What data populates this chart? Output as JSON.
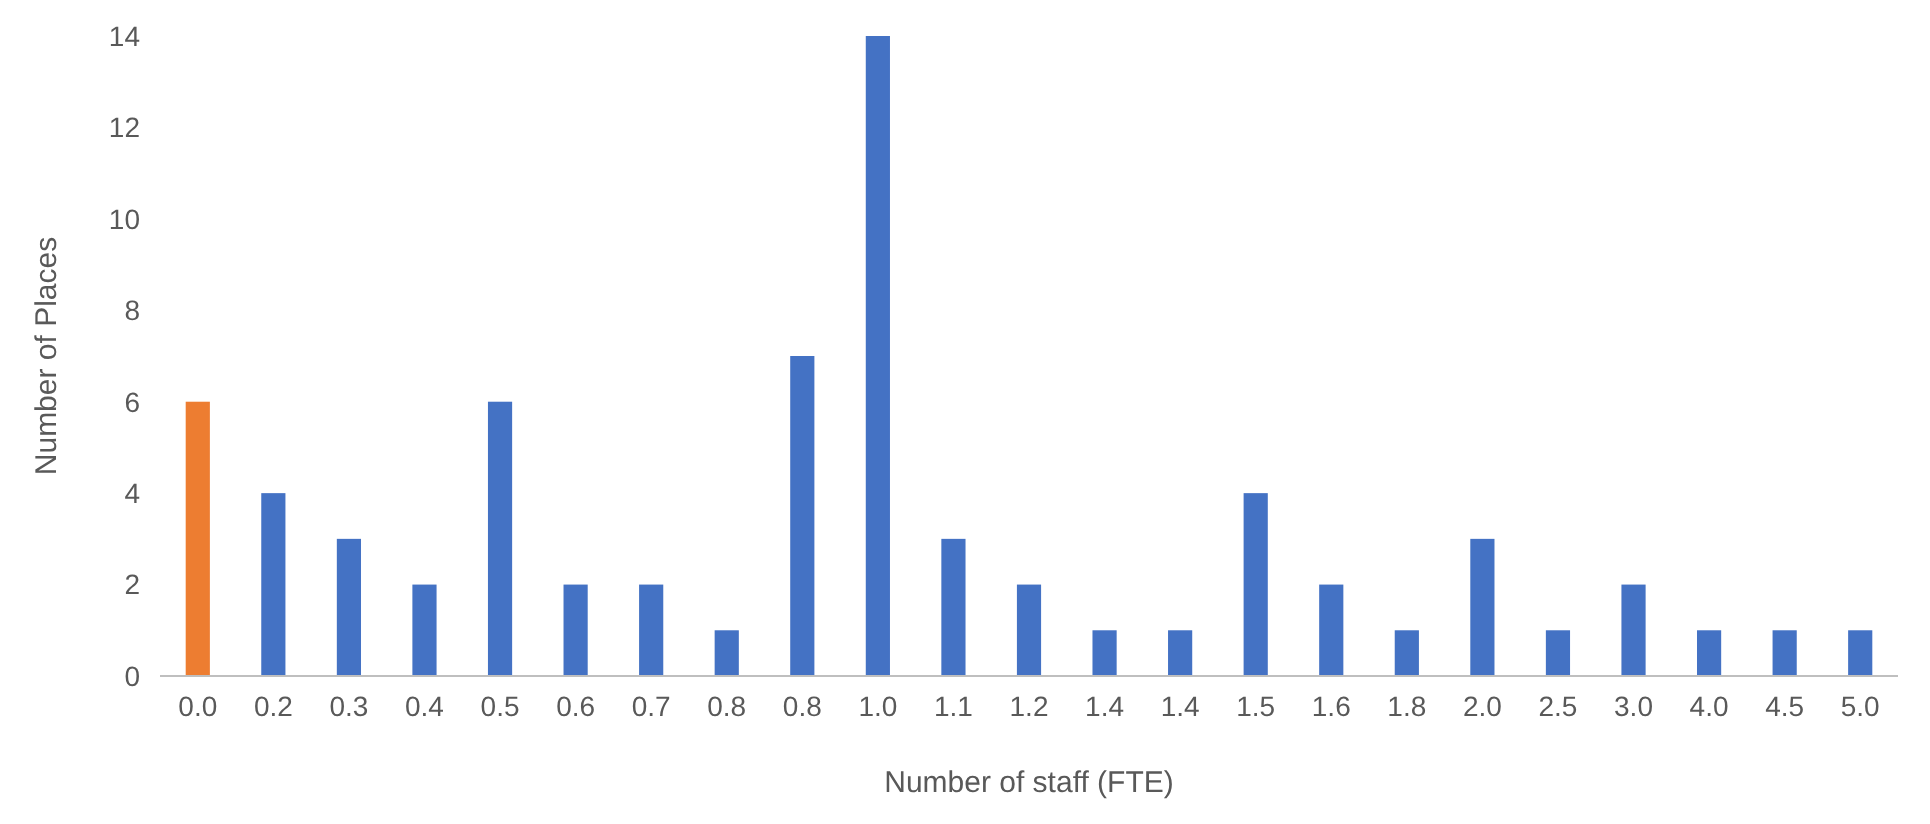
{
  "chart_data": {
    "type": "bar",
    "xlabel": "Number of  staff (FTE)",
    "ylabel": "Number of Places",
    "categories": [
      "0.0",
      "0.2",
      "0.3",
      "0.4",
      "0.5",
      "0.6",
      "0.7",
      "0.8",
      "0.8",
      "1.0",
      "1.1",
      "1.2",
      "1.4",
      "1.4",
      "1.5",
      "1.6",
      "1.8",
      "2.0",
      "2.5",
      "3.0",
      "4.0",
      "4.5",
      "5.0"
    ],
    "values": [
      6,
      4,
      3,
      2,
      6,
      2,
      2,
      1,
      7,
      14,
      3,
      2,
      1,
      1,
      4,
      2,
      1,
      3,
      1,
      2,
      1,
      1,
      1
    ],
    "colors": [
      "#ed7d31",
      "#4472c4",
      "#4472c4",
      "#4472c4",
      "#4472c4",
      "#4472c4",
      "#4472c4",
      "#4472c4",
      "#4472c4",
      "#4472c4",
      "#4472c4",
      "#4472c4",
      "#4472c4",
      "#4472c4",
      "#4472c4",
      "#4472c4",
      "#4472c4",
      "#4472c4",
      "#4472c4",
      "#4472c4",
      "#4472c4",
      "#4472c4",
      "#4472c4"
    ],
    "ylim": [
      0,
      14
    ],
    "yticks": [
      0,
      2,
      4,
      6,
      8,
      10,
      12,
      14
    ]
  }
}
